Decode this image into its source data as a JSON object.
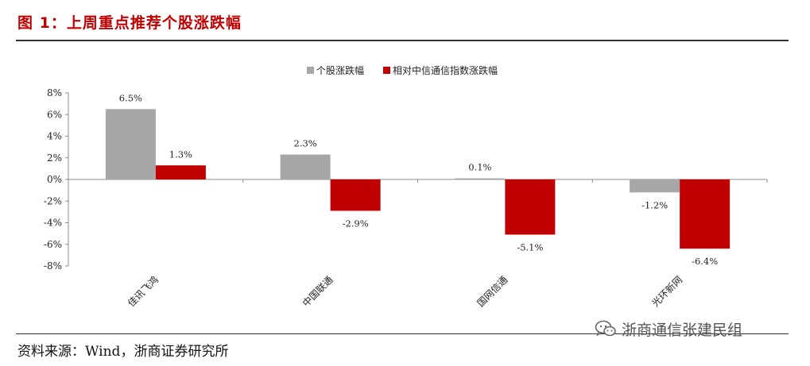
{
  "header": {
    "title": "图 1：上周重点推荐个股涨跌幅"
  },
  "footer": {
    "source": "资料来源：Wind，浙商证券研究所",
    "watermark": "浙商通信张建民组",
    "watermark_icon": "wechat-icon"
  },
  "colors": {
    "title": "#c00000",
    "series_1": "#a6a6a6",
    "series_2": "#c00000"
  },
  "chart_data": {
    "type": "bar",
    "categories": [
      "佳讯飞鸿",
      "中国联通",
      "国网信通",
      "光环新网"
    ],
    "series": [
      {
        "name": "个股涨跌幅",
        "values": [
          6.5,
          2.3,
          0.1,
          -1.2
        ],
        "labels": [
          "6.5%",
          "2.3%",
          "0.1%",
          "-1.2%"
        ]
      },
      {
        "name": "相对中信通信指数涨跌幅",
        "values": [
          1.3,
          -2.9,
          -5.1,
          -6.4
        ],
        "labels": [
          "1.3%",
          "-2.9%",
          "-5.1%",
          "-6.4%"
        ]
      }
    ],
    "y_ticks": [
      8,
      6,
      4,
      2,
      0,
      -2,
      -4,
      -6,
      -8
    ],
    "y_tick_labels": [
      "8%",
      "6%",
      "4%",
      "2%",
      "0%",
      "-2%",
      "-4%",
      "-6%",
      "-8%"
    ],
    "ylim": [
      -8,
      8
    ],
    "legend_position": "top-center",
    "grid": false
  }
}
